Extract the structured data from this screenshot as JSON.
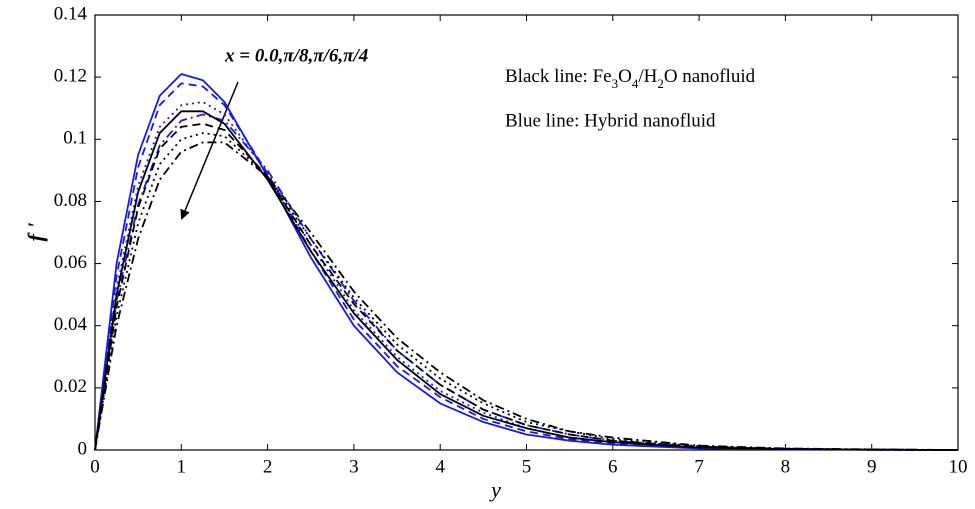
{
  "chart_data": {
    "type": "line",
    "xlabel": "y",
    "ylabel": "f '",
    "annotations": {
      "arrow_label": "x = 0.0,π/8,π/6,π/4",
      "black_line": [
        "Black line: Fe",
        "3",
        "O",
        "4",
        "/H",
        "2",
        "O nanofluid"
      ],
      "blue_line": "Blue line: Hybrid nanofluid"
    },
    "x": [
      0,
      0.25,
      0.5,
      0.75,
      1,
      1.25,
      1.5,
      2,
      2.5,
      3,
      3.5,
      4,
      4.5,
      5,
      5.5,
      6,
      7,
      8,
      9,
      10
    ],
    "series": [
      {
        "color": "#1a1adb",
        "dash": "solid",
        "values": [
          0,
          0.06,
          0.095,
          0.114,
          0.121,
          0.119,
          0.112,
          0.088,
          0.062,
          0.04,
          0.025,
          0.015,
          0.009,
          0.005,
          0.003,
          0.0017,
          0.0005,
          0.0002,
          0.0001,
          0
        ]
      },
      {
        "color": "#1a1adb",
        "dash": "dashed",
        "values": [
          0,
          0.056,
          0.091,
          0.111,
          0.118,
          0.117,
          0.111,
          0.089,
          0.064,
          0.042,
          0.027,
          0.017,
          0.01,
          0.006,
          0.0035,
          0.002,
          0.0007,
          0.0002,
          0.0001,
          0
        ]
      },
      {
        "color": "#1a1adb",
        "dash": "dotted",
        "values": [
          0,
          0.052,
          0.085,
          0.104,
          0.111,
          0.112,
          0.108,
          0.089,
          0.066,
          0.045,
          0.03,
          0.019,
          0.012,
          0.007,
          0.004,
          0.0025,
          0.0008,
          0.0003,
          0.0001,
          0
        ]
      },
      {
        "color": "#1a1adb",
        "dash": "dashdot",
        "values": [
          0,
          0.048,
          0.079,
          0.098,
          0.106,
          0.108,
          0.106,
          0.09,
          0.068,
          0.048,
          0.032,
          0.021,
          0.013,
          0.008,
          0.005,
          0.003,
          0.001,
          0.0004,
          0.0001,
          0
        ]
      },
      {
        "color": "#000000",
        "dash": "solid",
        "values": [
          0,
          0.05,
          0.083,
          0.102,
          0.109,
          0.109,
          0.105,
          0.087,
          0.064,
          0.044,
          0.029,
          0.018,
          0.011,
          0.007,
          0.004,
          0.0025,
          0.0008,
          0.0003,
          0.0001,
          0
        ]
      },
      {
        "color": "#000000",
        "dash": "dashed",
        "values": [
          0,
          0.046,
          0.078,
          0.097,
          0.104,
          0.105,
          0.103,
          0.088,
          0.066,
          0.047,
          0.032,
          0.021,
          0.013,
          0.008,
          0.005,
          0.003,
          0.001,
          0.0004,
          0.0001,
          0
        ]
      },
      {
        "color": "#000000",
        "dash": "dotted",
        "values": [
          0,
          0.043,
          0.073,
          0.092,
          0.1,
          0.102,
          0.101,
          0.088,
          0.068,
          0.049,
          0.034,
          0.023,
          0.015,
          0.009,
          0.006,
          0.0035,
          0.0012,
          0.0004,
          0.0001,
          0
        ]
      },
      {
        "color": "#000000",
        "dash": "dashdot",
        "values": [
          0,
          0.04,
          0.068,
          0.087,
          0.096,
          0.099,
          0.099,
          0.088,
          0.07,
          0.051,
          0.036,
          0.025,
          0.016,
          0.01,
          0.006,
          0.004,
          0.0014,
          0.0005,
          0.0002,
          0
        ]
      }
    ],
    "xlim": [
      0,
      10
    ],
    "xticks": [
      0,
      1,
      2,
      3,
      4,
      5,
      6,
      7,
      8,
      9,
      10
    ],
    "ylim": [
      0,
      0.14
    ],
    "yticks": [
      0,
      0.02,
      0.04,
      0.06,
      0.08,
      0.1,
      0.12,
      0.14
    ],
    "grid": false
  }
}
